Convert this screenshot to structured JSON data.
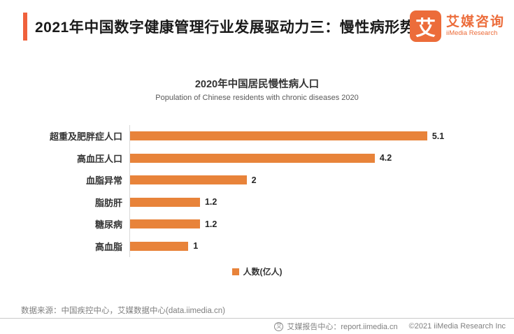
{
  "header": {
    "title": "2021年中国数字健康管理行业发展驱动力三：慢性病形势",
    "accent_color": "#F0613C"
  },
  "logo": {
    "mark": "艾",
    "name_cn": "艾媒咨询",
    "name_en": "iiMedia Research",
    "color": "#EC6C3A"
  },
  "chart_data": {
    "type": "bar",
    "orientation": "horizontal",
    "title": "2020年中国居民慢性病人口",
    "subtitle": "Population of Chinese residents with chronic diseases 2020",
    "categories": [
      "超重及肥胖症人口",
      "高血压人口",
      "血脂异常",
      "脂肪肝",
      "糖尿病",
      "高血脂"
    ],
    "values": [
      5.1,
      4.2,
      2,
      1.2,
      1.2,
      1
    ],
    "unit": "亿人",
    "xlim": [
      0,
      6
    ],
    "grid": false,
    "bar_color": "#E8833A",
    "value_labels_shown": true,
    "legend_position": "bottom"
  },
  "legend": {
    "label": "人数(亿人)",
    "marker_color": "#E8833A"
  },
  "source_note": "数据来源：中国疾控中心，艾媒数据中心(data.iimedia.cn)",
  "footer": {
    "report_center": "艾媒报告中心：report.iimedia.cn",
    "copyright": "©2021  iiMedia Research  Inc",
    "badge": "艾"
  }
}
